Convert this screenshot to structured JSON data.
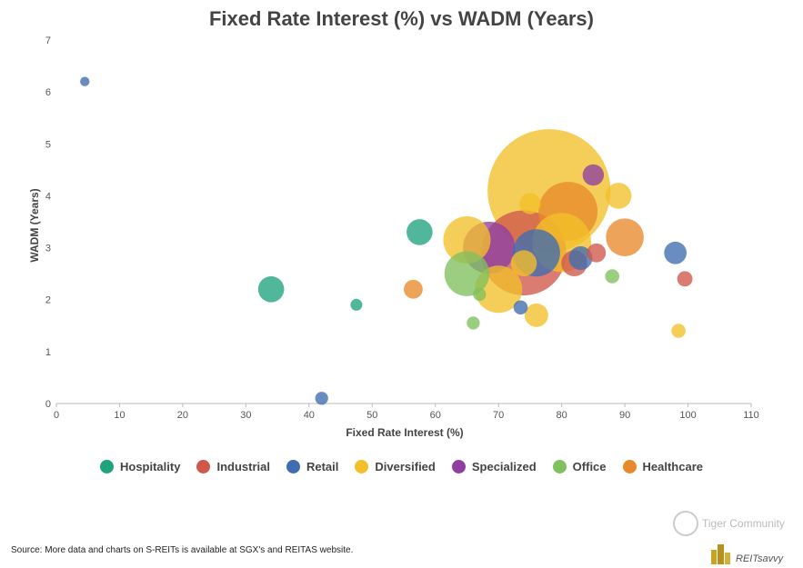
{
  "title": "Fixed Rate Interest (%) vs WADM (Years)",
  "source_note": "Source: More data and charts on S-REITs is available at SGX's and REITAS website.",
  "watermark": {
    "community": "Tiger Community",
    "brand": "REITsavvy"
  },
  "colors": {
    "Hospitality": "#1fa37f",
    "Industrial": "#d0574a",
    "Retail": "#3f6db0",
    "Diversified": "#f2c02a",
    "Specialized": "#8e3fa0",
    "Office": "#80c05e",
    "Healthcare": "#e88a2c"
  },
  "chart_data": {
    "type": "scatter",
    "title": "Fixed Rate Interest (%) vs WADM (Years)",
    "xlabel": "Fixed Rate Interest (%)",
    "ylabel": "WADM (Years)",
    "xlim": [
      0,
      110
    ],
    "ylim": [
      0,
      7
    ],
    "xticks": [
      "0",
      "10",
      "20",
      "30",
      "40",
      "50",
      "60",
      "70",
      "80",
      "90",
      "100",
      "110"
    ],
    "yticks": [
      "0",
      "1",
      "2",
      "3",
      "4",
      "5",
      "6",
      "7"
    ],
    "legend": [
      "Hospitality",
      "Industrial",
      "Retail",
      "Diversified",
      "Specialized",
      "Office",
      "Healthcare"
    ],
    "legend_position": "bottom",
    "points": [
      {
        "sector": "Industrial",
        "x": 74,
        "y": 2.9,
        "size": 3.6
      },
      {
        "sector": "Diversified",
        "x": 78,
        "y": 4.1,
        "size": 5.2
      },
      {
        "sector": "Healthcare",
        "x": 81,
        "y": 3.7,
        "size": 2.5
      },
      {
        "sector": "Retail",
        "x": 76,
        "y": 2.9,
        "size": 2.0
      },
      {
        "sector": "Specialized",
        "x": 68.5,
        "y": 3.0,
        "size": 2.2
      },
      {
        "sector": "Industrial",
        "x": 82,
        "y": 2.7,
        "size": 1.1
      },
      {
        "sector": "Diversified",
        "x": 70,
        "y": 2.2,
        "size": 2.0
      },
      {
        "sector": "Diversified",
        "x": 65,
        "y": 3.15,
        "size": 2.0
      },
      {
        "sector": "Office",
        "x": 65,
        "y": 2.5,
        "size": 1.9
      },
      {
        "sector": "Diversified",
        "x": 80,
        "y": 3.1,
        "size": 2.5
      },
      {
        "sector": "Healthcare",
        "x": 90,
        "y": 3.2,
        "size": 1.6
      },
      {
        "sector": "Retail",
        "x": 83,
        "y": 2.8,
        "size": 1.0
      },
      {
        "sector": "Industrial",
        "x": 85.5,
        "y": 2.9,
        "size": 0.8
      },
      {
        "sector": "Diversified",
        "x": 75,
        "y": 3.85,
        "size": 0.9
      },
      {
        "sector": "Specialized",
        "x": 85,
        "y": 4.4,
        "size": 0.9
      },
      {
        "sector": "Diversified",
        "x": 89,
        "y": 4.0,
        "size": 1.1
      },
      {
        "sector": "Diversified",
        "x": 74,
        "y": 2.7,
        "size": 1.1
      },
      {
        "sector": "Diversified",
        "x": 76,
        "y": 1.7,
        "size": 1.0
      },
      {
        "sector": "Hospitality",
        "x": 57.5,
        "y": 3.3,
        "size": 1.1
      },
      {
        "sector": "Hospitality",
        "x": 34,
        "y": 2.2,
        "size": 1.1
      },
      {
        "sector": "Hospitality",
        "x": 47.5,
        "y": 1.9,
        "size": 0.5
      },
      {
        "sector": "Healthcare",
        "x": 56.5,
        "y": 2.2,
        "size": 0.8
      },
      {
        "sector": "Office",
        "x": 67,
        "y": 2.1,
        "size": 0.55
      },
      {
        "sector": "Office",
        "x": 66,
        "y": 1.55,
        "size": 0.55
      },
      {
        "sector": "Office",
        "x": 88,
        "y": 2.45,
        "size": 0.6
      },
      {
        "sector": "Retail",
        "x": 73.5,
        "y": 1.85,
        "size": 0.6
      },
      {
        "sector": "Retail",
        "x": 98,
        "y": 2.9,
        "size": 0.95
      },
      {
        "sector": "Industrial",
        "x": 99.5,
        "y": 2.4,
        "size": 0.65
      },
      {
        "sector": "Diversified",
        "x": 98.5,
        "y": 1.4,
        "size": 0.6
      },
      {
        "sector": "Retail",
        "x": 42,
        "y": 0.1,
        "size": 0.55
      },
      {
        "sector": "Retail",
        "x": 4.5,
        "y": 6.2,
        "size": 0.4
      }
    ]
  }
}
